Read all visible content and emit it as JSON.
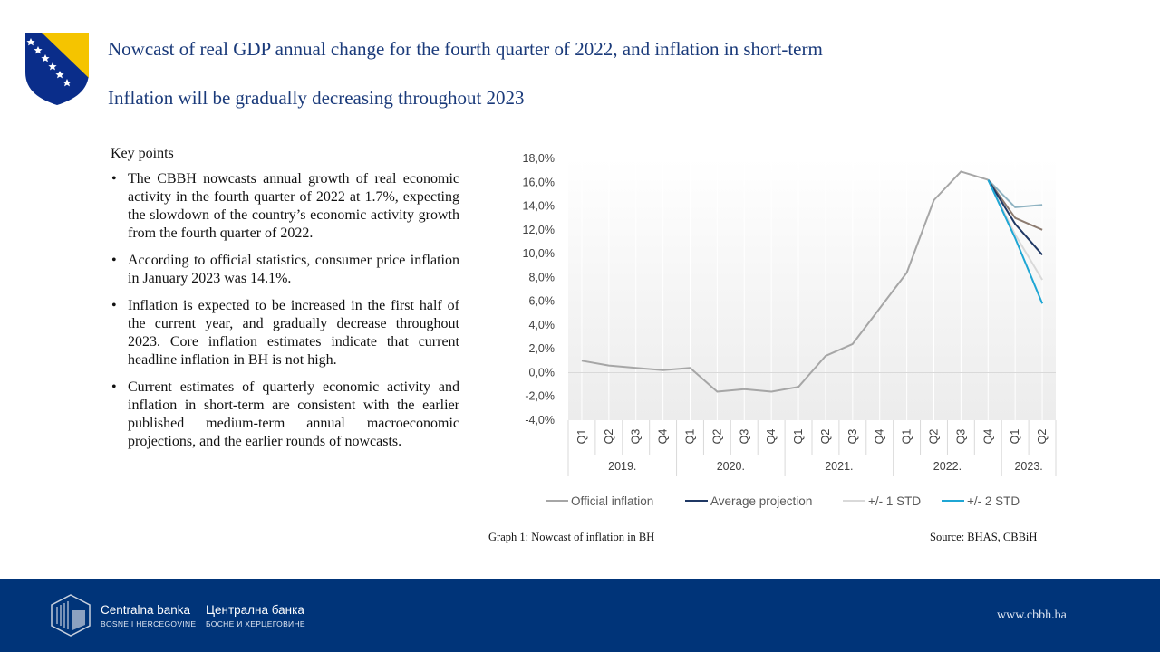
{
  "header": {
    "title": "Nowcast of real GDP annual change for the fourth quarter of 2022, and inflation in short-term",
    "subtitle": "Inflation will be gradually decreasing throughout 2023"
  },
  "key_points": {
    "heading": "Key points",
    "items": [
      "The CBBH nowcasts annual growth of real economic activity in the fourth quarter of 2022 at 1.7%, expecting the slowdown of the country’s economic activity growth from the fourth quarter of 2022.",
      "According to official statistics, consumer price inflation  in January 2023 was 14.1%.",
      "Inflation is expected to be increased in the first half of the current year, and gradually decrease throughout 2023. Core inflation estimates indicate that current headline inflation in BH is not high.",
      "Current estimates of quarterly economic activity and inflation in short-term are consistent with the earlier published medium-term annual macroeconomic projections, and the earlier rounds of nowcasts."
    ]
  },
  "captions": {
    "graph": "Graph 1: Nowcast of inflation in BH",
    "source": "Source: BHAS,  CBBiH"
  },
  "footer": {
    "name_latin": "Centralna banka",
    "sub_latin": "BOSNE I HERCEGOVINE",
    "name_cyrillic": "Централна банка",
    "sub_cyrillic": "БОСНЕ И ХЕРЦЕГОВИНЕ",
    "website": "www.cbbh.ba"
  },
  "colors": {
    "title": "#1a3a7a",
    "footer_bg": "#003479",
    "official": "#a6a6a6",
    "average": "#1f3864",
    "std1_upper": "#8c7b70",
    "std1_lower": "#d9d9d9",
    "std2_upper": "#8fb3c2",
    "std2_lower": "#1fa6d4"
  },
  "chart_data": {
    "type": "line",
    "title": "",
    "xlabel": "",
    "ylabel": "",
    "ylim": [
      -4,
      18
    ],
    "yticks": [
      -4,
      -2,
      0,
      2,
      4,
      6,
      8,
      10,
      12,
      14,
      16,
      18
    ],
    "ytick_labels": [
      "-4,0%",
      "-2,0%",
      "0,0%",
      "2,0%",
      "4,0%",
      "6,0%",
      "8,0%",
      "10,0%",
      "12,0%",
      "14,0%",
      "16,0%",
      "18,0%"
    ],
    "categories": [
      "Q1",
      "Q2",
      "Q3",
      "Q4",
      "Q1",
      "Q2",
      "Q3",
      "Q4",
      "Q1",
      "Q2",
      "Q3",
      "Q4",
      "Q1",
      "Q2",
      "Q3",
      "Q4",
      "Q1",
      "Q2"
    ],
    "year_groups": [
      {
        "label": "2019.",
        "count": 4
      },
      {
        "label": "2020.",
        "count": 4
      },
      {
        "label": "2021.",
        "count": 4
      },
      {
        "label": "2022.",
        "count": 4
      },
      {
        "label": "2023.",
        "count": 2
      }
    ],
    "legend_position": "bottom",
    "legend": [
      "Official inflation",
      "Average projection",
      "+/- 1 STD",
      "+/- 2 STD"
    ],
    "series": [
      {
        "name": "Official inflation",
        "values": [
          1.0,
          0.6,
          0.4,
          0.2,
          0.4,
          -1.6,
          -1.4,
          -1.6,
          -1.2,
          1.4,
          2.4,
          5.4,
          8.4,
          14.5,
          16.9,
          16.2,
          null,
          null
        ]
      },
      {
        "name": "Average projection",
        "values": [
          null,
          null,
          null,
          null,
          null,
          null,
          null,
          null,
          null,
          null,
          null,
          null,
          null,
          null,
          null,
          16.2,
          12.5,
          9.9
        ]
      },
      {
        "name": "+/- 1 STD",
        "band": "upper",
        "values": [
          null,
          null,
          null,
          null,
          null,
          null,
          null,
          null,
          null,
          null,
          null,
          null,
          null,
          null,
          null,
          16.2,
          13.0,
          12.0
        ]
      },
      {
        "name": "+/- 1 STD",
        "band": "lower",
        "values": [
          null,
          null,
          null,
          null,
          null,
          null,
          null,
          null,
          null,
          null,
          null,
          null,
          null,
          null,
          null,
          16.2,
          11.6,
          7.8
        ]
      },
      {
        "name": "+/- 2 STD",
        "band": "upper",
        "values": [
          null,
          null,
          null,
          null,
          null,
          null,
          null,
          null,
          null,
          null,
          null,
          null,
          null,
          null,
          null,
          16.2,
          13.9,
          14.1
        ]
      },
      {
        "name": "+/- 2 STD",
        "band": "lower",
        "values": [
          null,
          null,
          null,
          null,
          null,
          null,
          null,
          null,
          null,
          null,
          null,
          null,
          null,
          null,
          null,
          16.2,
          11.3,
          5.8
        ]
      }
    ]
  }
}
